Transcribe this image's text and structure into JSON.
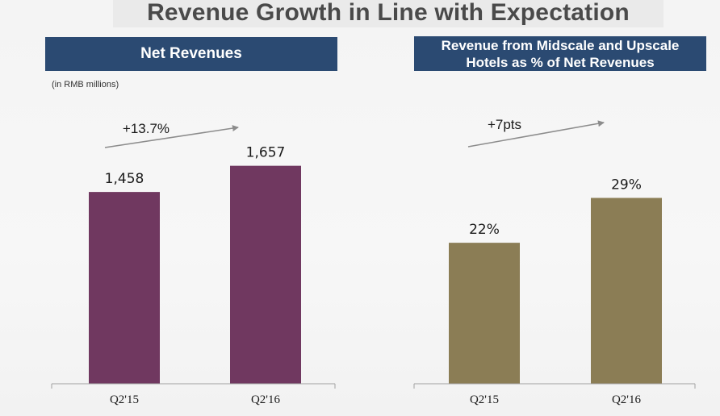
{
  "title": "Revenue Growth in Line with Expectation",
  "colors": {
    "header_bg": "#2b4a72",
    "bar_left": "#703860",
    "bar_right": "#8b7d55",
    "arrow": "#8c8c8c"
  },
  "left_panel": {
    "header": "Net Revenues",
    "unit_note": "(in RMB millions)",
    "growth_label": "+13.7%"
  },
  "right_panel": {
    "header_line1": "Revenue from Midscale and Upscale",
    "header_line2": "Hotels as % of Net Revenues",
    "growth_label": "+7pts"
  },
  "chart_data": [
    {
      "type": "bar",
      "title": "Net Revenues",
      "categories": [
        "Q2'15",
        "Q2'16"
      ],
      "values": [
        1458,
        1657
      ],
      "data_labels": [
        "1,458",
        "1,657"
      ],
      "ylabel": "(in RMB millions)",
      "ylim": [
        0,
        1900
      ],
      "grid": false,
      "annotation": "+13.7%"
    },
    {
      "type": "bar",
      "title": "Revenue from Midscale and Upscale Hotels as % of Net Revenues",
      "categories": [
        "Q2'15",
        "Q2'16"
      ],
      "values": [
        22,
        29
      ],
      "data_labels": [
        "22%",
        "29%"
      ],
      "ylim": [
        0,
        39
      ],
      "grid": false,
      "annotation": "+7pts"
    }
  ]
}
